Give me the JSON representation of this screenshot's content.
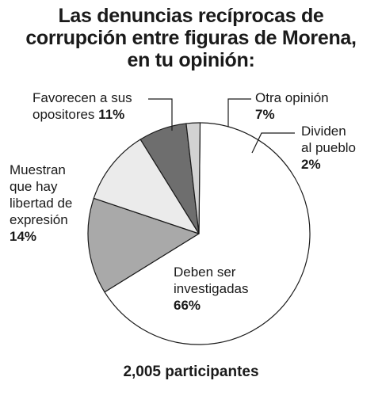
{
  "title": [
    "Las denuncias recíprocas de",
    "corrupción entre figuras de Morena,",
    "en tu opinión:"
  ],
  "footer": "2,005 participantes",
  "chart_data": {
    "type": "pie",
    "title": "Las denuncias recíprocas de corrupción entre figuras de Morena, en tu opinión:",
    "slices": [
      {
        "label": "Deben ser investigadas",
        "value": 66,
        "display": "66%",
        "color": "#ffffff"
      },
      {
        "label": "Muestran que hay libertad de expresión",
        "value": 14,
        "display": "14%",
        "color": "#a9a9a9"
      },
      {
        "label": "Favorecen a sus opositores",
        "value": 11,
        "display": "11%",
        "color": "#ebebeb"
      },
      {
        "label": "Otra opinión",
        "value": 7,
        "display": "7%",
        "color": "#6e6e6e"
      },
      {
        "label": "Dividen al pueblo",
        "value": 2,
        "display": "2%",
        "color": "#d2d2d2"
      }
    ]
  },
  "labels": {
    "investigadas": {
      "lines": [
        "Deben ser",
        "investigadas"
      ],
      "pct": "66%"
    },
    "libertad": {
      "lines": [
        "Muestran",
        "que hay",
        "libertad de",
        "expresión"
      ],
      "pct": "14%"
    },
    "opositores": {
      "lines": [
        "Favorecen a sus"
      ],
      "last": "opositores",
      "pct": "11%"
    },
    "otra": {
      "lines": [
        "Otra opinión"
      ],
      "pct": "7%"
    },
    "dividen": {
      "lines": [
        "Dividen",
        "al pueblo"
      ],
      "pct": "2%"
    }
  }
}
